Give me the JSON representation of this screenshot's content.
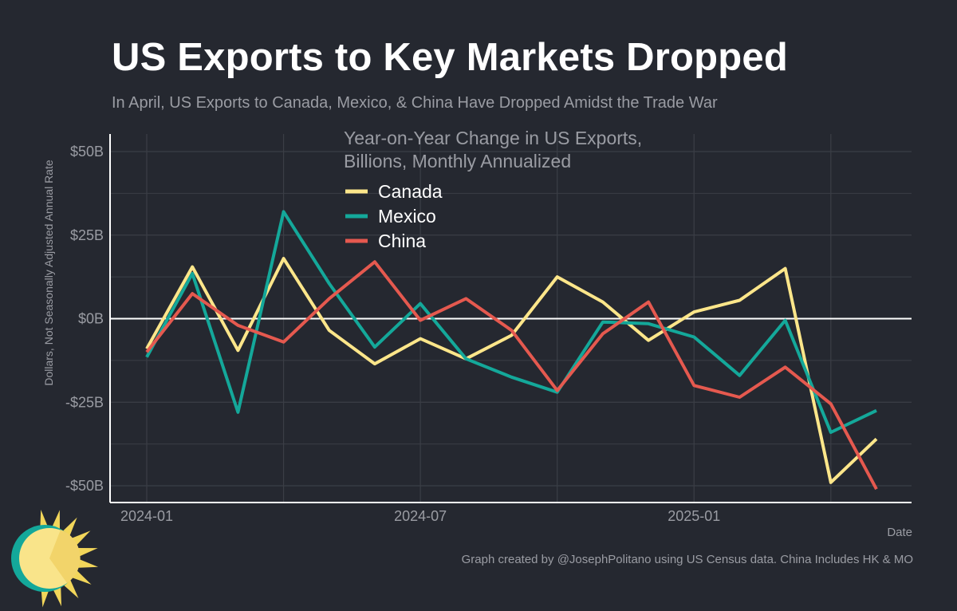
{
  "title": "US Exports to Key Markets Dropped",
  "subtitle": "In April, US Exports to Canada, Mexico, & China Have Dropped Amidst the Trade War",
  "caption": "Graph created by @JosephPolitano using US Census data. China Includes HK & MO",
  "logo_icon": "sun-logo-icon",
  "colors": {
    "background": "#252830",
    "grid": "#3b3e46",
    "zero_line": "#ffffff",
    "axis": "#ffffff",
    "text_muted": "#9a9ca3"
  },
  "chart_data": {
    "type": "line",
    "title": "US Exports to Key Markets Dropped",
    "ylabel": "Dollars, Not Seasonally Adjusted Annual Rate",
    "xlabel": "Date",
    "legend_title_lines": [
      "Year-on-Year Change in US Exports,",
      "Billions, Monthly Annualized"
    ],
    "legend_position": "top-center",
    "grid": true,
    "ylim": [
      -52,
      55
    ],
    "xlim": [
      "2023-12",
      "2025-05"
    ],
    "x": [
      "2024-01",
      "2024-02",
      "2024-03",
      "2024-04",
      "2024-05",
      "2024-06",
      "2024-07",
      "2024-08",
      "2024-09",
      "2024-10",
      "2024-11",
      "2024-12",
      "2025-01",
      "2025-02",
      "2025-03",
      "2025-04",
      "2025-05"
    ],
    "y_ticks": [
      50,
      25,
      0,
      -25,
      -50
    ],
    "y_tick_labels": [
      "$50B",
      "$25B",
      "$0B",
      "-$25B",
      "-$50B"
    ],
    "x_tick_positions": [
      "2024-01",
      "2024-07",
      "2025-01"
    ],
    "x_tick_labels": [
      "2024-01",
      "2024-07",
      "2025-01"
    ],
    "series": [
      {
        "name": "Canada",
        "color": "#fde68a",
        "values": [
          -9,
          15.5,
          -9.5,
          18,
          -3.5,
          -13.5,
          -6,
          -12,
          -5,
          12.5,
          5,
          -6.5,
          2,
          5.5,
          15,
          -49,
          -36
        ]
      },
      {
        "name": "Mexico",
        "color": "#14a89a",
        "values": [
          -11.5,
          13.5,
          -28,
          32,
          10.5,
          -8.5,
          4.5,
          -12,
          -17.5,
          -22,
          -1,
          -1.5,
          -5.5,
          -17,
          -0.5,
          -34,
          -27.5
        ]
      },
      {
        "name": "China",
        "color": "#e5594f",
        "values": [
          -10,
          7.5,
          -2,
          -7,
          6,
          17,
          -0.5,
          6,
          -3.5,
          -21.5,
          -4.5,
          5,
          -20,
          -23.5,
          -14.5,
          -25.5,
          -51
        ]
      }
    ]
  }
}
